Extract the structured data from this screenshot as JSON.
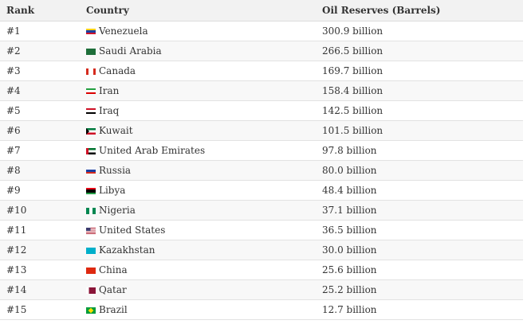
{
  "table": {
    "headers": {
      "rank": "Rank",
      "country": "Country",
      "oil": "Oil Reserves (Barrels)"
    },
    "rows": [
      {
        "rank": "#1",
        "country": "Venezuela",
        "oil": "300.9 billion",
        "flag": "venezuela-flag-icon"
      },
      {
        "rank": "#2",
        "country": "Saudi Arabia",
        "oil": "266.5 billion",
        "flag": "saudi-arabia-flag-icon"
      },
      {
        "rank": "#3",
        "country": "Canada",
        "oil": "169.7 billion",
        "flag": "canada-flag-icon"
      },
      {
        "rank": "#4",
        "country": "Iran",
        "oil": "158.4 billion",
        "flag": "iran-flag-icon"
      },
      {
        "rank": "#5",
        "country": "Iraq",
        "oil": "142.5 billion",
        "flag": "iraq-flag-icon"
      },
      {
        "rank": "#6",
        "country": "Kuwait",
        "oil": "101.5 billion",
        "flag": "kuwait-flag-icon"
      },
      {
        "rank": "#7",
        "country": "United Arab Emirates",
        "oil": "97.8 billion",
        "flag": "uae-flag-icon"
      },
      {
        "rank": "#8",
        "country": "Russia",
        "oil": "80.0 billion",
        "flag": "russia-flag-icon"
      },
      {
        "rank": "#9",
        "country": "Libya",
        "oil": "48.4 billion",
        "flag": "libya-flag-icon"
      },
      {
        "rank": "#10",
        "country": "Nigeria",
        "oil": "37.1 billion",
        "flag": "nigeria-flag-icon"
      },
      {
        "rank": "#11",
        "country": "United States",
        "oil": "36.5 billion",
        "flag": "usa-flag-icon"
      },
      {
        "rank": "#12",
        "country": "Kazakhstan",
        "oil": "30.0 billion",
        "flag": "kazakhstan-flag-icon"
      },
      {
        "rank": "#13",
        "country": "China",
        "oil": "25.6 billion",
        "flag": "china-flag-icon"
      },
      {
        "rank": "#14",
        "country": "Qatar",
        "oil": "25.2 billion",
        "flag": "qatar-flag-icon"
      },
      {
        "rank": "#15",
        "country": "Brazil",
        "oil": "12.7 billion",
        "flag": "brazil-flag-icon"
      }
    ]
  }
}
